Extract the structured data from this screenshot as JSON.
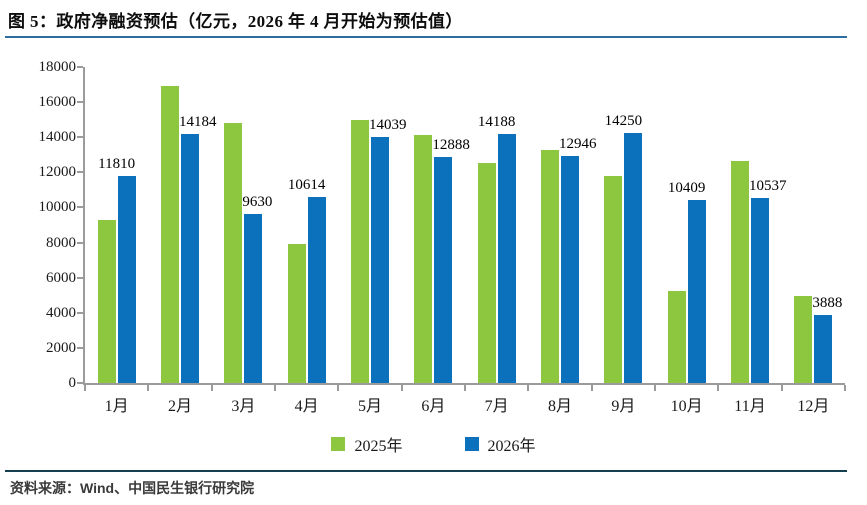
{
  "header": {
    "title": "图 5：政府净融资预估（亿元，2026 年 4 月开始为预估值）"
  },
  "footer": {
    "source": "资料来源：Wind、中国民生银行研究院"
  },
  "colors": {
    "series_2025": "#8dc63f",
    "series_2026": "#0c71bc",
    "axis": "#9b9b9b",
    "title_rule": "#2e6da0",
    "bottom_rule": "#153f4f"
  },
  "chart_data": {
    "type": "bar",
    "title": "政府净融资预估（亿元，2026 年 4 月开始为预估值）",
    "categories": [
      "1月",
      "2月",
      "3月",
      "4月",
      "5月",
      "6月",
      "7月",
      "8月",
      "9月",
      "10月",
      "11月",
      "12月"
    ],
    "series": [
      {
        "name": "2025年",
        "color": "#8dc63f",
        "data_labels": false,
        "values": [
          9300,
          16900,
          14800,
          7900,
          15000,
          14100,
          12550,
          13300,
          11800,
          5250,
          12650,
          4950
        ]
      },
      {
        "name": "2026年",
        "color": "#0c71bc",
        "data_labels": true,
        "values": [
          11810,
          14184,
          9630,
          10614,
          14039,
          12888,
          14188,
          12946,
          14250,
          10409,
          10537,
          3888
        ]
      }
    ],
    "xlabel": "",
    "ylabel": "",
    "ylim": [
      0,
      18000
    ],
    "ytick_interval": 2000,
    "grid": false,
    "legend_position": "bottom"
  }
}
